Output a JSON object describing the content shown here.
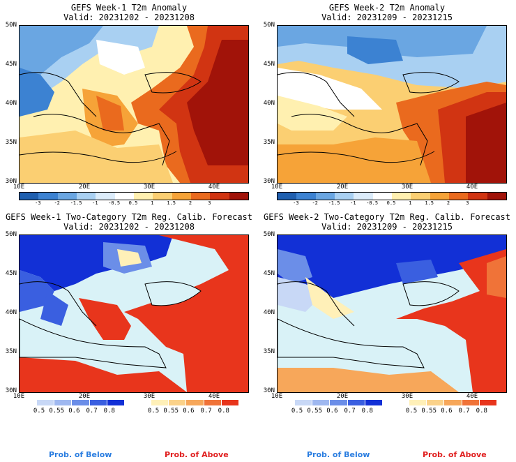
{
  "panels": [
    {
      "title": "GEFS Week-1 T2m Anomaly",
      "valid": "Valid: 20231202 - 20231208"
    },
    {
      "title": "GEFS Week-2 T2m Anomaly",
      "valid": "Valid: 20231209 - 20231215"
    },
    {
      "title": "GEFS Week-1 Two-Category T2m Reg. Calib. Forecast",
      "valid": "Valid: 20231202 - 20231208"
    },
    {
      "title": "GEFS Week-2 Two-Category T2m Reg. Calib. Forecast",
      "valid": "Valid: 20231209 - 20231215"
    }
  ],
  "lat_labels": [
    "50N",
    "45N",
    "40N",
    "35N",
    "30N"
  ],
  "lon_labels": [
    "10E",
    "20E",
    "30E",
    "40E"
  ],
  "anomaly_ticks": [
    "-3",
    "-2",
    "-1.5",
    "-1",
    "-0.5",
    "0.5",
    "1",
    "1.5",
    "2",
    "3"
  ],
  "anomaly_colors": [
    "#1f5fb0",
    "#3c82d2",
    "#6aa6e2",
    "#a9d0f2",
    "#dcecfa",
    "#ffffff",
    "#fff0b0",
    "#fbcf72",
    "#f6a338",
    "#ea6a1e",
    "#d13412",
    "#a11309"
  ],
  "prob_ticks": [
    "0.5",
    "0.55",
    "0.6",
    "0.7",
    "0.8"
  ],
  "below_colors": [
    "#c8d8f6",
    "#9fb8f0",
    "#6b8ee8",
    "#3a5fe0",
    "#1230d6"
  ],
  "above_colors": [
    "#fff0b8",
    "#fbd28a",
    "#f7a75a",
    "#f07338",
    "#e8351c"
  ],
  "ocean_color": "#d9f2f7",
  "footer": {
    "below": "Prob. of Below",
    "above": "Prob. of Above",
    "below_color": "#2a7de0",
    "above_color": "#e02020"
  }
}
